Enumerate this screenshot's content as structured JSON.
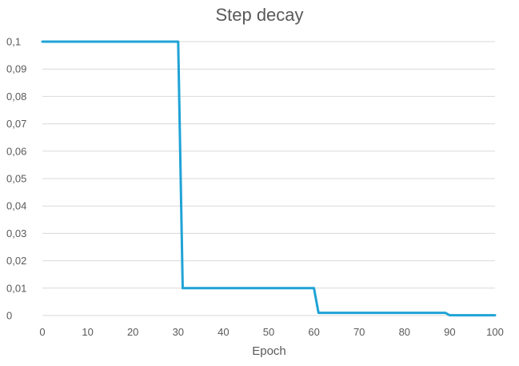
{
  "chart_data": {
    "type": "line",
    "title": "Step decay",
    "xlabel": "Epoch",
    "ylabel": "",
    "xlim": [
      0,
      100
    ],
    "ylim": [
      0,
      0.1
    ],
    "x_ticks": [
      0,
      10,
      20,
      30,
      40,
      50,
      60,
      70,
      80,
      90,
      100
    ],
    "x_tick_labels": [
      "0",
      "10",
      "20",
      "30",
      "40",
      "50",
      "60",
      "70",
      "80",
      "90",
      "100"
    ],
    "y_ticks": [
      0,
      0.01,
      0.02,
      0.03,
      0.04,
      0.05,
      0.06,
      0.07,
      0.08,
      0.09,
      0.1
    ],
    "y_tick_labels": [
      "0",
      "0,01",
      "0,02",
      "0,03",
      "0,04",
      "0,05",
      "0,06",
      "0,07",
      "0,08",
      "0,09",
      "0,1"
    ],
    "grid": {
      "horizontal": true,
      "vertical": false
    },
    "legend": "none",
    "series": [
      {
        "color": "#1FA3D6",
        "points": [
          [
            0,
            0.1
          ],
          [
            30,
            0.1
          ],
          [
            31,
            0.01
          ],
          [
            60,
            0.01
          ],
          [
            61,
            0.001
          ],
          [
            89,
            0.001
          ],
          [
            90,
            0.0001
          ],
          [
            100,
            0.0001
          ]
        ]
      }
    ]
  },
  "colors": {
    "grid": "#D9D9D9",
    "text": "#595959",
    "line": "#1FA3D6"
  }
}
